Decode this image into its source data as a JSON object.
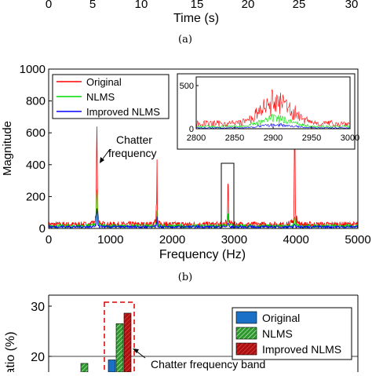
{
  "panel_a": {
    "ticks": [
      "0",
      "5",
      "10",
      "15",
      "20",
      "25",
      "30"
    ],
    "xlabel": "Time (s)",
    "caption": "(a)"
  },
  "panel_b": {
    "caption": "(b)",
    "annotation": [
      "Chatter",
      "frequency"
    ]
  },
  "panel_c": {
    "ylabel": "atio (%)",
    "annotation": "Chatter frequency band"
  },
  "colors": {
    "original": "#ff0000",
    "nlms": "#00dd00",
    "improved": "#0000ff",
    "bar_original": "#1a6fc6",
    "bar_nlms": "#2e9a2e",
    "bar_improved": "#b01010"
  },
  "chart_data": [
    {
      "type": "line",
      "xlabel": "Frequency (Hz)",
      "ylabel": "Magnitude",
      "xlim": [
        0,
        5000
      ],
      "ylim": [
        0,
        1000
      ],
      "xticks": [
        0,
        1000,
        2000,
        3000,
        4000,
        5000
      ],
      "yticks": [
        0,
        200,
        400,
        600,
        800,
        1000
      ],
      "legend_position": "top-left",
      "series": [
        {
          "name": "Original",
          "peaks": [
            [
              780,
              720
            ],
            [
              1750,
              400
            ],
            [
              2900,
              320
            ],
            [
              3980,
              920
            ]
          ],
          "baseline": 25
        },
        {
          "name": "NLMS",
          "peaks": [
            [
              780,
              380
            ],
            [
              1750,
              150
            ],
            [
              2900,
              100
            ],
            [
              3980,
              95
            ]
          ],
          "baseline": 15
        },
        {
          "name": "Improved NLMS",
          "peaks": [
            [
              780,
              150
            ],
            [
              1750,
              70
            ],
            [
              2900,
              45
            ],
            [
              3980,
              25
            ]
          ],
          "baseline": 10
        }
      ],
      "inset": {
        "xlim": [
          2800,
          3000
        ],
        "ylim": [
          0,
          600
        ],
        "xticks": [
          2800,
          2850,
          2900,
          2950,
          3000
        ],
        "yticks": [
          0,
          500
        ]
      }
    },
    {
      "type": "bar",
      "ylabel": "atio (%)",
      "ylim_visible": [
        18,
        31
      ],
      "yticks": [
        20,
        30
      ],
      "legend_position": "top-right",
      "series": [
        {
          "name": "Original",
          "values": [
            19.3
          ]
        },
        {
          "name": "NLMS",
          "values": [
            26.5
          ]
        },
        {
          "name": "Improved NLMS",
          "values": [
            28.6
          ]
        }
      ],
      "extra_bar": {
        "series": "NLMS",
        "value": 18.6
      }
    }
  ]
}
